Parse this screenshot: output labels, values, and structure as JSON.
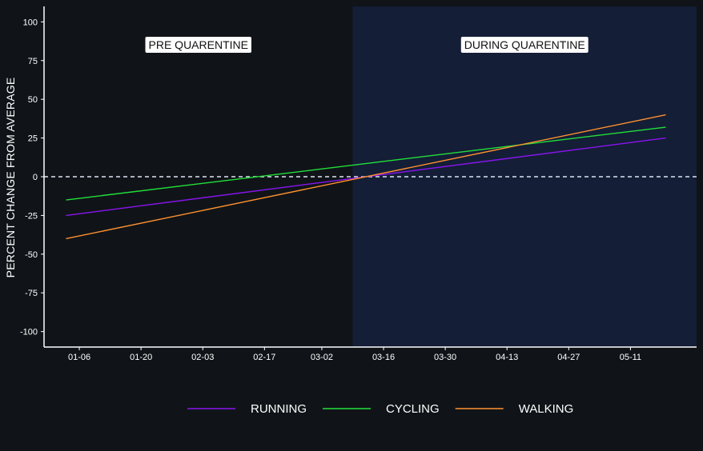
{
  "chart_data": {
    "type": "line",
    "title": "",
    "xlabel": "",
    "ylabel": "PERCENT CHANGE FROM AVERAGE",
    "x_axis": {
      "type": "date",
      "range": [
        "2020-12-29",
        "2021-05-26"
      ],
      "tick_values": [
        "2021-01-06",
        "2021-01-20",
        "2021-02-03",
        "2021-02-17",
        "2021-03-02",
        "2021-03-16",
        "2021-03-30",
        "2021-04-13",
        "2021-04-27",
        "2021-05-11"
      ],
      "tick_labels": [
        "01-06",
        "01-20",
        "02-03",
        "02-17",
        "03-02",
        "03-16",
        "03-30",
        "04-13",
        "04-27",
        "05-11"
      ]
    },
    "y_axis": {
      "range": [
        -110,
        110
      ],
      "ticks": [
        100,
        75,
        50,
        25,
        0,
        -25,
        -50,
        -75,
        -100
      ]
    },
    "grid": false,
    "regions": [
      {
        "label": "PRE QUARENTINE",
        "from": "2020-12-29",
        "to": "2021-03-09",
        "color": "#101418"
      },
      {
        "label": "DURING QUARENTINE",
        "from": "2021-03-09",
        "to": "2021-05-26",
        "color": "#141e36"
      }
    ],
    "reference_line": {
      "y": 0,
      "style": "dashed",
      "color": "#dfe4f5"
    },
    "series": [
      {
        "name": "RUNNING",
        "color": "#8a14f0",
        "x": [
          "2021-01-03",
          "2021-05-19"
        ],
        "values": [
          -25,
          25
        ]
      },
      {
        "name": "CYCLING",
        "color": "#22e03a",
        "x": [
          "2021-01-03",
          "2021-05-19"
        ],
        "values": [
          -15,
          32
        ]
      },
      {
        "name": "WALKING",
        "color": "#ff9130",
        "x": [
          "2021-01-03",
          "2021-05-19"
        ],
        "values": [
          -40,
          40
        ]
      }
    ],
    "legend": {
      "position": "bottom"
    }
  }
}
